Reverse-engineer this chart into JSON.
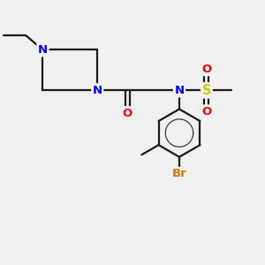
{
  "background_color": "#f0f0f0",
  "bond_color": "#1a1a1a",
  "N_color": "#0000ee",
  "O_color": "#ee0000",
  "S_color": "#cccc00",
  "Br_color": "#cc7700",
  "line_width": 1.6,
  "figsize": [
    3.0,
    3.0
  ],
  "dpi": 100,
  "xlim": [
    0,
    10
  ],
  "ylim": [
    0,
    10
  ]
}
